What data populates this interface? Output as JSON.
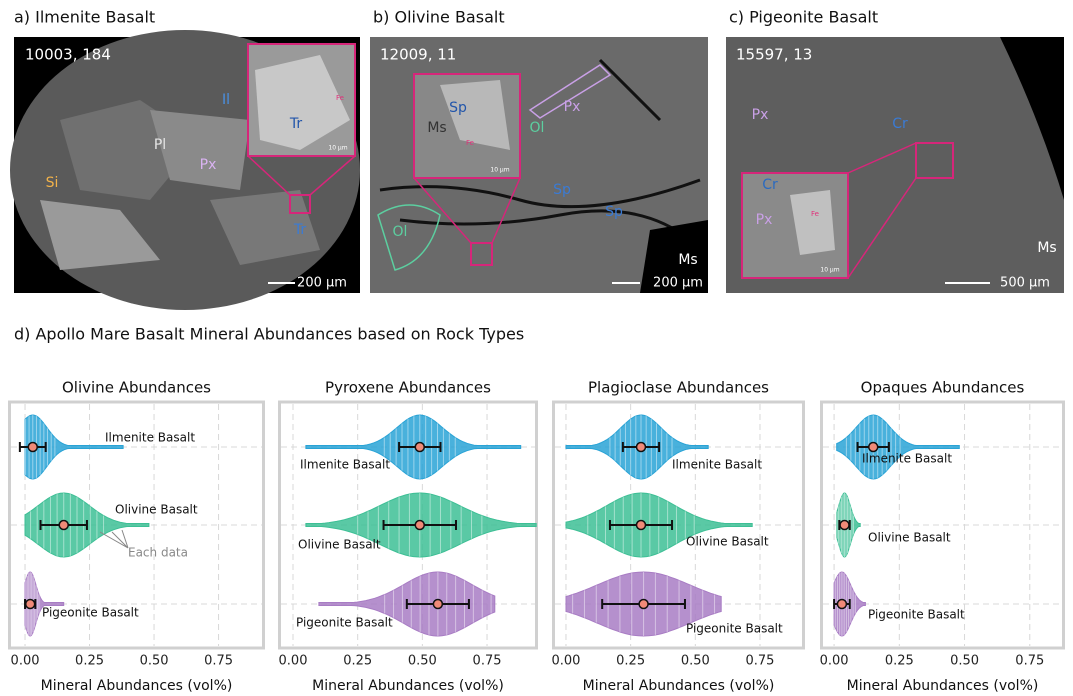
{
  "panels": [
    {
      "title": "a) Ilmenite Basalt",
      "sample": "10003, 184",
      "scale": "200 μm",
      "inset_scale": "10 μm",
      "labels": [
        {
          "text": "Il",
          "color": "#4a90e2"
        },
        {
          "text": "Pl",
          "color": "#e6e6e6"
        },
        {
          "text": "Px",
          "color": "#d9b3f2"
        },
        {
          "text": "Si",
          "color": "#f2b24a"
        },
        {
          "text": "Tr",
          "color": "#3a7bd5"
        },
        {
          "text": "Tr",
          "color": "#2255aa"
        },
        {
          "text": "Fe",
          "color": "#e0307a"
        }
      ]
    },
    {
      "title": "b) Olivine Basalt",
      "sample": "12009, 11",
      "scale": "200 μm",
      "inset_scale": "10 μm",
      "labels": [
        {
          "text": "Sp",
          "color": "#2255aa"
        },
        {
          "text": "Ms",
          "color": "#333333"
        },
        {
          "text": "Ol",
          "color": "#5ccfa0"
        },
        {
          "text": "Px",
          "color": "#c9a0e6"
        },
        {
          "text": "Fe",
          "color": "#e0307a"
        },
        {
          "text": "Ol",
          "color": "#5ccfa0"
        },
        {
          "text": "Sp",
          "color": "#3a7bd5"
        },
        {
          "text": "Sp",
          "color": "#3a7bd5"
        },
        {
          "text": "Ms",
          "color": "#ffffff"
        }
      ]
    },
    {
      "title": "c) Pigeonite Basalt",
      "sample": "15597, 13",
      "scale": "500 μm",
      "inset_scale": "10 μm",
      "labels": [
        {
          "text": "Px",
          "color": "#c9a0e6"
        },
        {
          "text": "Cr",
          "color": "#3a7bd5"
        },
        {
          "text": "Cr",
          "color": "#2a6ac0"
        },
        {
          "text": "Px",
          "color": "#c9a0e6"
        },
        {
          "text": "Fe",
          "color": "#e0307a"
        },
        {
          "text": "Ms",
          "color": "#ffffff"
        }
      ]
    }
  ],
  "section_title": "d) Apollo Mare Basalt Mineral Abundances based on Rock Types",
  "chart_data": [
    {
      "type": "violin",
      "title": "Olivine Abundances",
      "xlabel": "Mineral Abundances (vol%)",
      "xlim": [
        -0.066,
        0.93
      ],
      "xticks": [
        {
          "value": 0,
          "label": "0.00"
        },
        {
          "value": 0.25,
          "label": "0.25"
        },
        {
          "value": 0.5,
          "label": "0.50"
        },
        {
          "value": 0.75,
          "label": "0.75"
        }
      ],
      "grid": true,
      "annotation": "Each data",
      "series": [
        {
          "name": "Ilmenite Basalt",
          "color": "#29a3d6",
          "mean": 0.03,
          "std": 0.05,
          "range": [
            0,
            0.38
          ]
        },
        {
          "name": "Olivine Basalt",
          "color": "#3dbf95",
          "mean": 0.15,
          "std": 0.09,
          "range": [
            0,
            0.48
          ]
        },
        {
          "name": "Pigeonite Basalt",
          "color": "#a87cc4",
          "mean": 0.02,
          "std": 0.02,
          "range": [
            0,
            0.15
          ]
        }
      ]
    },
    {
      "type": "violin",
      "title": "Pyroxene Abundances",
      "xlabel": "Mineral Abundances (vol%)",
      "xlim": [
        -0.058,
        0.947
      ],
      "xticks": [
        {
          "value": 0,
          "label": "0.00"
        },
        {
          "value": 0.25,
          "label": "0.25"
        },
        {
          "value": 0.5,
          "label": "0.50"
        },
        {
          "value": 0.75,
          "label": "0.75"
        }
      ],
      "grid": true,
      "series": [
        {
          "name": "Ilmenite Basalt",
          "color": "#29a3d6",
          "mean": 0.49,
          "std": 0.08,
          "range": [
            0.05,
            0.88
          ]
        },
        {
          "name": "Olivine Basalt",
          "color": "#3dbf95",
          "mean": 0.49,
          "std": 0.14,
          "range": [
            0.05,
            0.94
          ]
        },
        {
          "name": "Pigeonite Basalt",
          "color": "#a87cc4",
          "mean": 0.56,
          "std": 0.12,
          "range": [
            0.1,
            0.78
          ]
        }
      ]
    },
    {
      "type": "violin",
      "title": "Plagioclase Abundances",
      "xlabel": "Mineral Abundances (vol%)",
      "xlim": [
        -0.054,
        0.924
      ],
      "xticks": [
        {
          "value": 0,
          "label": "0.00"
        },
        {
          "value": 0.25,
          "label": "0.25"
        },
        {
          "value": 0.5,
          "label": "0.50"
        },
        {
          "value": 0.75,
          "label": "0.75"
        }
      ],
      "grid": true,
      "series": [
        {
          "name": "Ilmenite Basalt",
          "color": "#29a3d6",
          "mean": 0.29,
          "std": 0.07,
          "range": [
            0,
            0.55
          ]
        },
        {
          "name": "Olivine Basalt",
          "color": "#3dbf95",
          "mean": 0.29,
          "std": 0.12,
          "range": [
            0,
            0.72
          ]
        },
        {
          "name": "Pigeonite Basalt",
          "color": "#a87cc4",
          "mean": 0.3,
          "std": 0.16,
          "range": [
            0,
            0.6
          ]
        }
      ]
    },
    {
      "type": "violin",
      "title": "Opaques Abundances",
      "xlabel": "Mineral Abundances (vol%)",
      "xlim": [
        -0.054,
        0.885
      ],
      "xticks": [
        {
          "value": 0,
          "label": "0.00"
        },
        {
          "value": 0.25,
          "label": "0.25"
        },
        {
          "value": 0.5,
          "label": "0.50"
        },
        {
          "value": 0.75,
          "label": "0.75"
        }
      ],
      "grid": true,
      "series": [
        {
          "name": "Ilmenite Basalt",
          "color": "#29a3d6",
          "mean": 0.15,
          "std": 0.06,
          "range": [
            0.01,
            0.48
          ]
        },
        {
          "name": "Olivine Basalt",
          "color": "#3dbf95",
          "mean": 0.04,
          "std": 0.02,
          "range": [
            0.01,
            0.1
          ]
        },
        {
          "name": "Pigeonite Basalt",
          "color": "#a87cc4",
          "mean": 0.03,
          "std": 0.03,
          "range": [
            0,
            0.12
          ]
        }
      ]
    }
  ]
}
